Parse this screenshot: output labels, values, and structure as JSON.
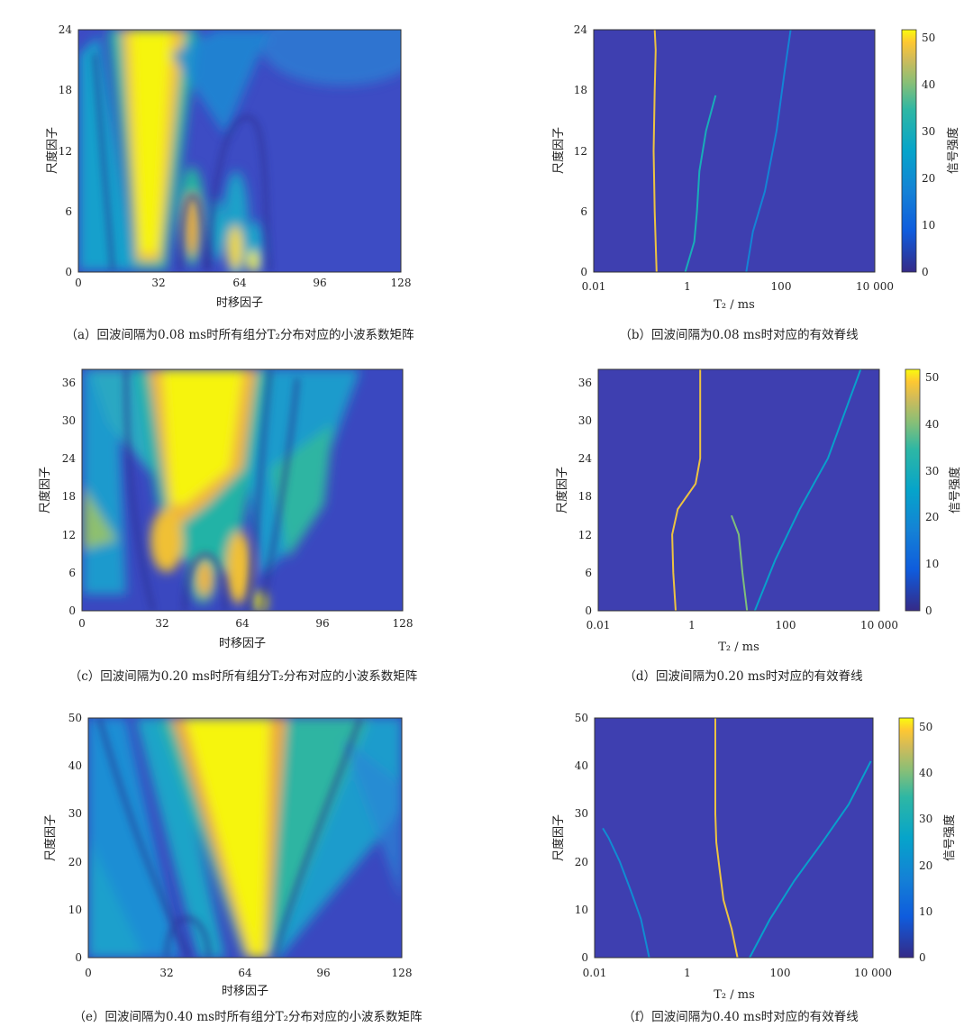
{
  "chart_data": [
    {
      "id": "a",
      "type": "heatmap",
      "caption": "（a）回波间隔为0.08 ms时所有组分T₂分布对应的小波系数矩阵",
      "xlabel": "时移因子",
      "ylabel": "尺度因子",
      "xlim": [
        0,
        128
      ],
      "ylim": [
        0,
        24
      ],
      "xticks": [
        "0",
        "32",
        "64",
        "96",
        "128"
      ],
      "yticks": [
        "0",
        "6",
        "12",
        "18",
        "24"
      ],
      "note": "bright yellow lobe near 时移因子 ≈ 28 across all scales; smaller lobes near 45, 62 and 70 at low scales"
    },
    {
      "id": "b",
      "type": "line",
      "caption": "（b）回波间隔为0.08 ms时对应的有效脊线",
      "xlabel": "T₂ / ms",
      "ylabel": "尺度因子",
      "xscale": "log",
      "xlim": [
        0.01,
        10000
      ],
      "ylim": [
        0,
        24
      ],
      "xticks": [
        "0.01",
        "1",
        "100",
        "10 000"
      ],
      "yticks": [
        "0",
        "6",
        "12",
        "18",
        "24"
      ],
      "colorbar": {
        "label": "信号强度",
        "range": [
          0,
          52
        ],
        "ticks": [
          "0",
          "10",
          "20",
          "30",
          "40",
          "50"
        ]
      },
      "series": [
        {
          "x": [
            0.22,
            0.2,
            0.19,
            0.2,
            0.21,
            0.2
          ],
          "y": [
            0,
            6,
            12,
            18,
            22,
            24
          ],
          "intensity": 48
        },
        {
          "x": [
            0.9,
            1.4,
            1.6,
            1.8,
            2.5,
            4.0
          ],
          "y": [
            0,
            3,
            6,
            10,
            14,
            17.5
          ],
          "intensity": 30
        },
        {
          "x": [
            18,
            25,
            45,
            80,
            120,
            160
          ],
          "y": [
            0,
            4,
            8,
            14,
            20,
            24
          ],
          "intensity": 18
        }
      ]
    },
    {
      "id": "c",
      "type": "heatmap",
      "caption": "（c）回波间隔为0.20 ms时所有组分T₂分布对应的小波系数矩阵",
      "xlabel": "时移因子",
      "ylabel": "尺度因子",
      "xlim": [
        0,
        128
      ],
      "ylim": [
        0,
        38
      ],
      "xticks": [
        "0",
        "32",
        "64",
        "96",
        "128"
      ],
      "yticks": [
        "0",
        "6",
        "12",
        "18",
        "24",
        "30",
        "36"
      ],
      "note": "broad yellow band centred near 时移因子 ≈ 48 widening with scale; yellow lobes near 48 and 64 at low scales"
    },
    {
      "id": "d",
      "type": "line",
      "caption": "（d）回波间隔为0.20 ms时对应的有效脊线",
      "xlabel": "T₂ / ms",
      "ylabel": "尺度因子",
      "xscale": "log",
      "xlim": [
        0.01,
        10000
      ],
      "ylim": [
        0,
        38
      ],
      "xticks": [
        "0.01",
        "1",
        "100",
        "10 000"
      ],
      "yticks": [
        "0",
        "6",
        "12",
        "18",
        "24",
        "30",
        "36"
      ],
      "colorbar": {
        "label": "信号强度",
        "range": [
          0,
          52
        ],
        "ticks": [
          "0",
          "10",
          "20",
          "30",
          "40",
          "50"
        ]
      },
      "series": [
        {
          "x": [
            0.45,
            0.4,
            0.38,
            0.5,
            1.2,
            1.5,
            1.5
          ],
          "y": [
            0,
            6,
            12,
            16,
            20,
            24,
            38
          ],
          "intensity": 48
        },
        {
          "x": [
            15,
            12,
            10,
            7
          ],
          "y": [
            0,
            6,
            12,
            15
          ],
          "intensity": 40
        },
        {
          "x": [
            22,
            60,
            200,
            800,
            2000,
            4000
          ],
          "y": [
            0,
            8,
            16,
            24,
            32,
            38
          ],
          "intensity": 25
        }
      ]
    },
    {
      "id": "e",
      "type": "heatmap",
      "caption": "（e）回波间隔为0.40 ms时所有组分T₂分布对应的小波系数矩阵",
      "xlabel": "时移因子",
      "ylabel": "尺度因子",
      "xlim": [
        0,
        128
      ],
      "ylim": [
        0,
        50
      ],
      "xticks": [
        "0",
        "32",
        "64",
        "96",
        "128"
      ],
      "yticks": [
        "0",
        "10",
        "20",
        "30",
        "40",
        "50"
      ],
      "note": "yellow fan centred near 时移因子 ≈ 50 at high scales narrowing to ≈ 65 at low scales"
    },
    {
      "id": "f",
      "type": "line",
      "caption": "（f）回波间隔为0.40 ms时对应的有效脊线",
      "xlabel": "T₂ / ms",
      "ylabel": "尺度因子",
      "xscale": "log",
      "xlim": [
        0.01,
        10000
      ],
      "ylim": [
        0,
        50
      ],
      "xticks": [
        "0.01",
        "1",
        "100",
        "10 000"
      ],
      "yticks": [
        "0",
        "10",
        "20",
        "30",
        "40",
        "50"
      ],
      "colorbar": {
        "label": "信号强度",
        "range": [
          0,
          52
        ],
        "ticks": [
          "0",
          "10",
          "20",
          "30",
          "40",
          "50"
        ]
      },
      "series": [
        {
          "x": [
            12,
            9,
            6,
            5,
            4.2,
            4,
            4
          ],
          "y": [
            0,
            6,
            12,
            18,
            24,
            30,
            50
          ],
          "intensity": 48
        },
        {
          "x": [
            22,
            60,
            200,
            800,
            3000,
            9000
          ],
          "y": [
            0,
            8,
            16,
            24,
            32,
            41
          ],
          "intensity": 25
        },
        {
          "x": [
            0.15,
            0.1,
            0.06,
            0.035,
            0.02,
            0.015
          ],
          "y": [
            0,
            8,
            14,
            20,
            25,
            27
          ],
          "intensity": 20
        }
      ]
    }
  ]
}
